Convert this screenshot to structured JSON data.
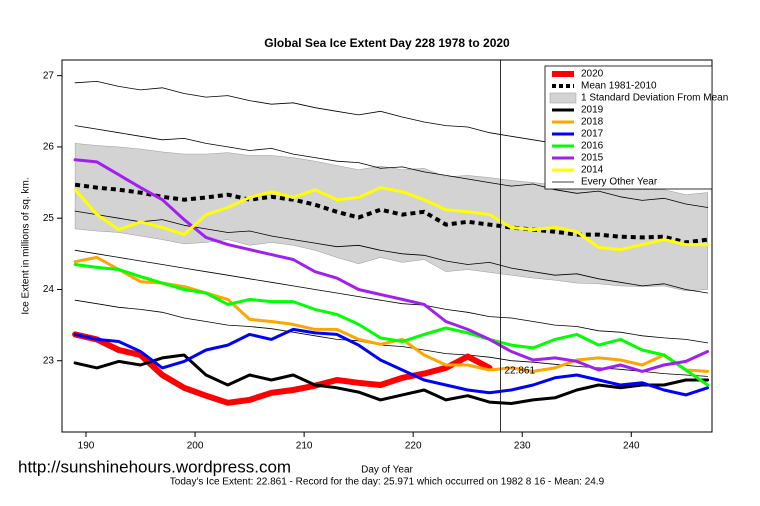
{
  "chart_data": {
    "type": "line",
    "title": "Global Sea Ice Extent Day 228 1978 to 2020",
    "x_label": "Day of Year",
    "y_label": "Ice Extent in millions of sq. km.",
    "footer": "Today's Ice Extent: 22.861  - Record for the day: 25.971 which occurred on 1982 8 16  - Mean: 24.9",
    "source": "http://sunshinehours.wordpress.com",
    "annotation": {
      "x": 228,
      "value": 22.861,
      "color": "#ff0000"
    },
    "legend": "topright",
    "xlim": [
      187.8,
      247.4
    ],
    "ylim": [
      22.0,
      27.22
    ],
    "xticks": [
      190,
      200,
      210,
      220,
      230,
      240
    ],
    "yticks": [
      23,
      24,
      25,
      26,
      27
    ],
    "x": [
      189,
      191,
      193,
      195,
      197,
      199,
      201,
      203,
      205,
      207,
      209,
      211,
      213,
      215,
      217,
      219,
      221,
      223,
      225,
      227,
      229,
      231,
      233,
      235,
      237,
      239,
      241,
      243,
      245,
      247
    ],
    "series": [
      {
        "name": "2020",
        "color": "#ff0000",
        "width": 6,
        "values": [
          23.37,
          23.3,
          23.15,
          23.08,
          22.8,
          22.62,
          22.51,
          22.41,
          22.45,
          22.55,
          22.59,
          22.65,
          22.73,
          22.69,
          22.66,
          22.76,
          22.82,
          22.9,
          23.06,
          22.9,
          null,
          null,
          null,
          null,
          null,
          null,
          null,
          null,
          null,
          null
        ]
      },
      {
        "name": "Mean 1981-2010",
        "color": "#000000",
        "width": 4,
        "dash": true,
        "values": [
          25.47,
          25.43,
          25.4,
          25.36,
          25.3,
          25.26,
          25.29,
          25.33,
          25.26,
          25.3,
          25.26,
          25.19,
          25.09,
          25.01,
          25.12,
          25.05,
          25.09,
          24.91,
          24.95,
          24.91,
          24.87,
          24.84,
          24.81,
          24.77,
          24.77,
          24.74,
          24.73,
          24.74,
          24.66,
          24.7
        ]
      },
      {
        "name": "1 Standard Deviation From Mean",
        "color": "#d3d3d3",
        "band": true,
        "upper": [
          26.05,
          26.02,
          26.0,
          25.97,
          25.93,
          25.9,
          25.9,
          25.92,
          25.88,
          25.88,
          25.85,
          25.8,
          25.74,
          25.68,
          25.73,
          25.68,
          25.7,
          25.58,
          25.6,
          25.57,
          25.53,
          25.5,
          25.47,
          25.44,
          25.43,
          25.4,
          25.4,
          25.4,
          25.33,
          25.36
        ],
        "lower": [
          24.85,
          24.82,
          24.8,
          24.75,
          24.7,
          24.64,
          24.66,
          24.7,
          24.62,
          24.66,
          24.62,
          24.55,
          24.45,
          24.36,
          24.45,
          24.38,
          24.42,
          24.25,
          24.28,
          24.24,
          24.2,
          24.16,
          24.13,
          24.09,
          24.08,
          24.05,
          24.04,
          24.05,
          23.98,
          24.0
        ]
      },
      {
        "name": "2019",
        "color": "#000000",
        "width": 3,
        "values": [
          22.97,
          22.9,
          22.99,
          22.94,
          23.04,
          23.08,
          22.8,
          22.66,
          22.8,
          22.73,
          22.8,
          22.66,
          22.62,
          22.56,
          22.45,
          22.52,
          22.59,
          22.45,
          22.51,
          22.42,
          22.4,
          22.45,
          22.48,
          22.59,
          22.66,
          22.62,
          22.66,
          22.66,
          22.73,
          22.73
        ]
      },
      {
        "name": "2018",
        "color": "#ffa500",
        "width": 3,
        "values": [
          24.39,
          24.45,
          24.28,
          24.11,
          24.09,
          24.04,
          23.95,
          23.86,
          23.58,
          23.55,
          23.51,
          23.44,
          23.44,
          23.3,
          23.23,
          23.3,
          23.08,
          22.94,
          22.94,
          22.87,
          22.9,
          22.85,
          22.9,
          23.01,
          23.04,
          23.01,
          22.94,
          23.08,
          22.87,
          22.85
        ]
      },
      {
        "name": "2017",
        "color": "#0000ff",
        "width": 3,
        "values": [
          23.37,
          23.3,
          23.27,
          23.13,
          22.9,
          22.99,
          23.15,
          23.22,
          23.37,
          23.3,
          23.44,
          23.39,
          23.37,
          23.22,
          23.01,
          22.87,
          22.73,
          22.66,
          22.59,
          22.55,
          22.59,
          22.66,
          22.76,
          22.8,
          22.73,
          22.66,
          22.69,
          22.59,
          22.52,
          22.62
        ]
      },
      {
        "name": "2016",
        "color": "#00ff00",
        "width": 3,
        "values": [
          24.35,
          24.31,
          24.28,
          24.18,
          24.09,
          24.0,
          23.95,
          23.79,
          23.86,
          23.83,
          23.83,
          23.72,
          23.65,
          23.51,
          23.32,
          23.27,
          23.37,
          23.46,
          23.39,
          23.3,
          23.22,
          23.18,
          23.3,
          23.37,
          23.22,
          23.3,
          23.15,
          23.08,
          22.87,
          22.66
        ]
      },
      {
        "name": "2015",
        "color": "#a020f0",
        "width": 3,
        "values": [
          25.82,
          25.79,
          25.61,
          25.43,
          25.26,
          24.98,
          24.73,
          24.63,
          24.56,
          24.49,
          24.42,
          24.25,
          24.16,
          24.0,
          23.93,
          23.86,
          23.79,
          23.55,
          23.44,
          23.3,
          23.13,
          23.01,
          23.04,
          22.99,
          22.87,
          22.94,
          22.85,
          22.94,
          22.99,
          23.13
        ]
      },
      {
        "name": "2014",
        "color": "#ffff00",
        "width": 3,
        "values": [
          25.4,
          25.05,
          24.84,
          24.95,
          24.87,
          24.77,
          25.05,
          25.15,
          25.29,
          25.37,
          25.29,
          25.4,
          25.26,
          25.29,
          25.43,
          25.37,
          25.26,
          25.12,
          25.09,
          25.05,
          24.87,
          24.84,
          24.87,
          24.81,
          24.59,
          24.56,
          24.63,
          24.7,
          24.63,
          24.63
        ]
      },
      {
        "name": "Every Other Year",
        "color": "#000000",
        "width": 0.8,
        "lines": [
          [
            26.9,
            26.92,
            26.85,
            26.8,
            26.83,
            26.75,
            26.7,
            26.72,
            26.65,
            26.6,
            26.62,
            26.55,
            26.5,
            26.45,
            26.5,
            26.42,
            26.35,
            26.3,
            26.28,
            26.2,
            26.15,
            26.1,
            26.05,
            26.02,
            25.98,
            25.95,
            25.9,
            25.85,
            25.8,
            25.78
          ],
          [
            26.3,
            26.25,
            26.2,
            26.15,
            26.1,
            26.12,
            26.05,
            26.0,
            25.95,
            25.98,
            25.9,
            25.85,
            25.8,
            25.78,
            25.7,
            25.72,
            25.65,
            25.6,
            25.55,
            25.5,
            25.45,
            25.48,
            25.4,
            25.35,
            25.38,
            25.3,
            25.25,
            25.28,
            25.2,
            25.15
          ],
          [
            25.1,
            25.05,
            25.0,
            24.95,
            24.98,
            24.9,
            24.85,
            24.8,
            24.82,
            24.75,
            24.7,
            24.65,
            24.6,
            24.62,
            24.55,
            24.5,
            24.48,
            24.4,
            24.35,
            24.38,
            24.3,
            24.25,
            24.2,
            24.22,
            24.15,
            24.1,
            24.05,
            24.08,
            24.0,
            23.95
          ],
          [
            24.55,
            24.5,
            24.45,
            24.4,
            24.35,
            24.3,
            24.25,
            24.2,
            24.15,
            24.1,
            24.05,
            24.0,
            23.95,
            23.9,
            23.85,
            23.8,
            23.78,
            23.72,
            23.68,
            23.62,
            23.6,
            23.55,
            23.5,
            23.48,
            23.42,
            23.4,
            23.35,
            23.32,
            23.3,
            23.25
          ],
          [
            23.85,
            23.8,
            23.75,
            23.72,
            23.68,
            23.6,
            23.55,
            23.5,
            23.48,
            23.45,
            23.4,
            23.35,
            23.3,
            23.28,
            23.22,
            23.2,
            23.15,
            23.1,
            23.08,
            23.05,
            23.0,
            22.98,
            22.95,
            22.92,
            22.9,
            22.88,
            22.85,
            22.82,
            22.8,
            22.78
          ]
        ]
      }
    ]
  }
}
